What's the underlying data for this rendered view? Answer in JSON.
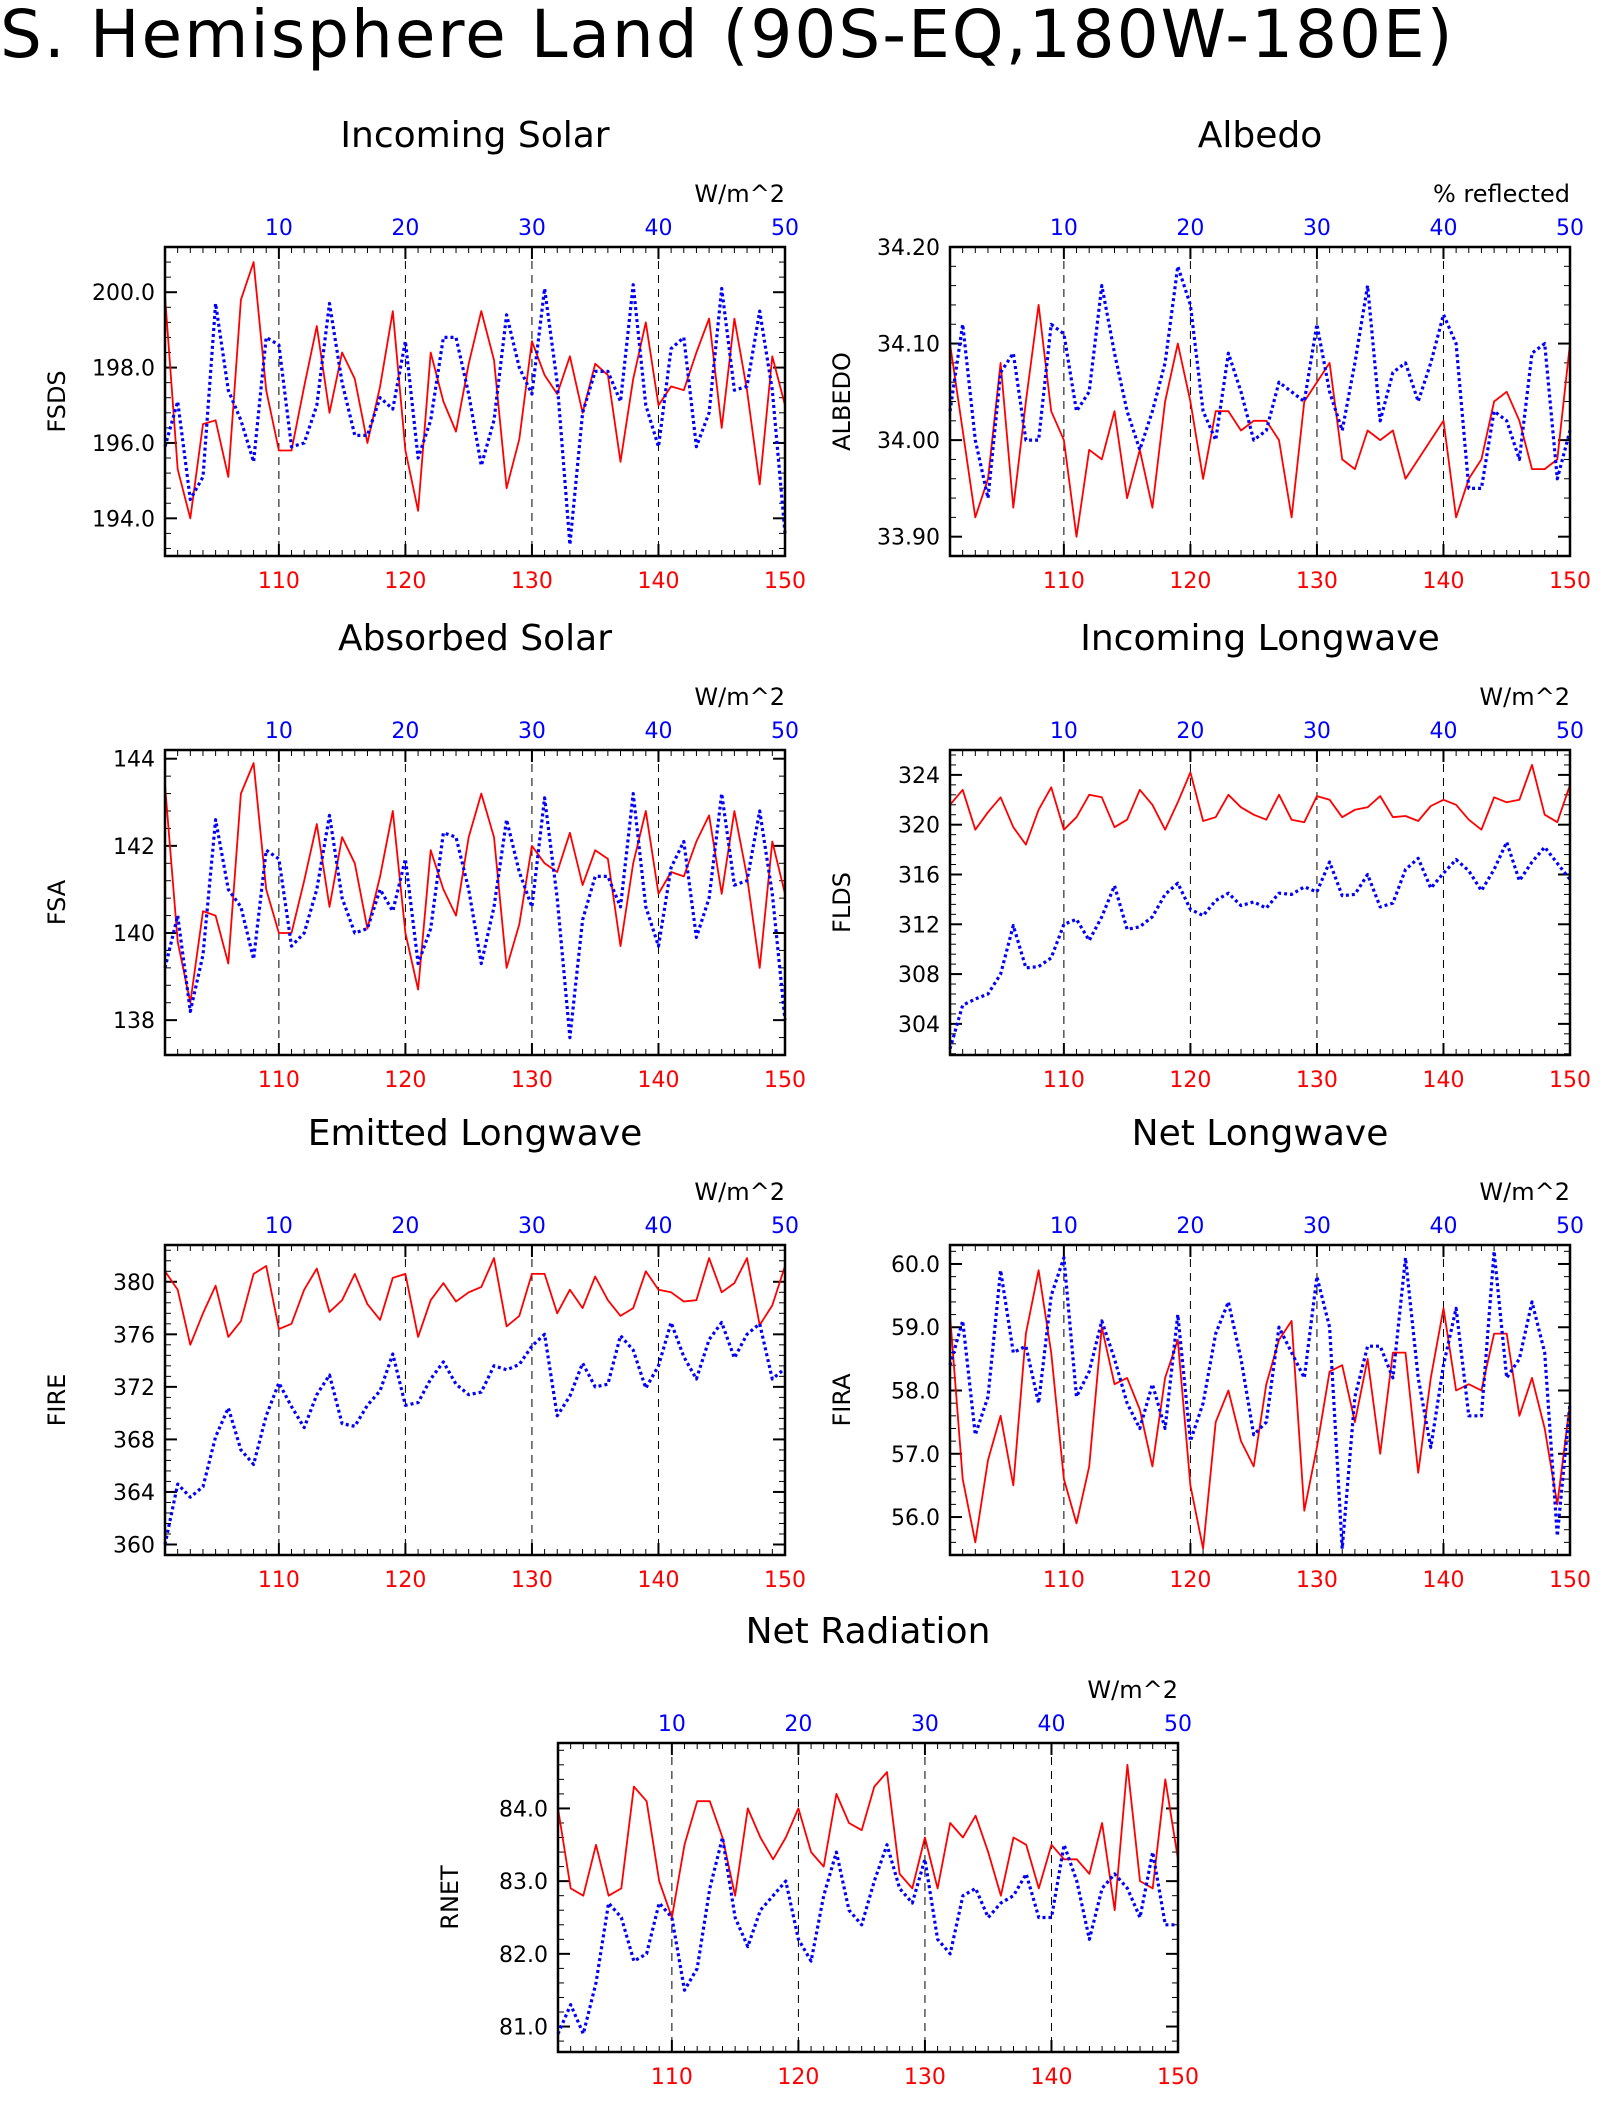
{
  "title": "S. Hemisphere Land (90S-EQ,180W-180E)",
  "colors": {
    "series_a": "#ff0000",
    "series_b": "#0000ff",
    "axes": "#000000",
    "grid": "#000000"
  },
  "chart_data": [
    {
      "id": "incoming-solar",
      "type": "line",
      "title": "Incoming Solar",
      "ylabel": "FSDS",
      "units": "W/m^2",
      "ylim": [
        193.0,
        201.2
      ],
      "yticks": [
        194.0,
        196.0,
        198.0,
        200.0
      ],
      "ytick_labels": [
        "194.0",
        "196.0",
        "198.0",
        "200.0"
      ],
      "xlim": [
        101,
        150
      ],
      "xticks_bottom": [
        "110",
        "120",
        "130",
        "140",
        "150"
      ],
      "xticks_top": [
        "10",
        "20",
        "30",
        "40",
        "50"
      ],
      "series": [
        {
          "values": [
            199.9,
            195.3,
            194.0,
            196.5,
            196.6,
            195.1,
            199.8,
            200.8,
            197.4,
            195.8,
            195.8,
            197.5,
            199.1,
            196.8,
            198.4,
            197.7,
            196.0,
            197.5,
            199.5,
            195.8,
            194.2,
            198.4,
            197.1,
            196.3,
            198.1,
            199.5,
            198.2,
            194.8,
            196.1,
            198.7,
            197.8,
            197.3,
            198.3,
            196.8,
            198.1,
            197.8,
            195.5,
            197.7,
            199.2,
            197.0,
            197.5,
            197.4,
            198.4,
            199.3,
            196.4,
            199.3,
            197.4,
            194.9,
            198.3,
            197.0
          ]
        },
        {
          "values": [
            195.9,
            197.1,
            194.5,
            195.1,
            199.7,
            197.4,
            196.6,
            195.5,
            198.8,
            198.6,
            195.9,
            196.0,
            197.0,
            199.7,
            197.6,
            196.2,
            196.2,
            197.2,
            196.9,
            198.7,
            195.6,
            196.6,
            198.8,
            198.8,
            197.3,
            195.4,
            196.6,
            199.4,
            198.0,
            197.3,
            200.1,
            197.6,
            193.3,
            196.8,
            197.9,
            197.9,
            197.1,
            200.2,
            197.0,
            195.9,
            198.5,
            198.8,
            195.9,
            196.8,
            200.1,
            197.4,
            197.5,
            199.5,
            197.4,
            193.6
          ]
        }
      ]
    },
    {
      "id": "albedo",
      "type": "line",
      "title": "Albedo",
      "ylabel": "ALBEDO",
      "units": "% reflected",
      "ylim": [
        33.88,
        34.2
      ],
      "yticks": [
        33.9,
        34.0,
        34.1,
        34.2
      ],
      "ytick_labels": [
        "33.90",
        "34.00",
        "34.10",
        "34.20"
      ],
      "xlim": [
        101,
        150
      ],
      "xticks_bottom": [
        "110",
        "120",
        "130",
        "140",
        "150"
      ],
      "xticks_top": [
        "10",
        "20",
        "30",
        "40",
        "50"
      ],
      "series": [
        {
          "values": [
            34.1,
            34.01,
            33.92,
            33.96,
            34.08,
            33.93,
            34.04,
            34.14,
            34.03,
            34.0,
            33.9,
            33.99,
            33.98,
            34.03,
            33.94,
            33.99,
            33.93,
            34.04,
            34.1,
            34.04,
            33.96,
            34.03,
            34.03,
            34.01,
            34.02,
            34.02,
            34.0,
            33.92,
            34.04,
            34.06,
            34.08,
            33.98,
            33.97,
            34.01,
            34.0,
            34.01,
            33.96,
            33.98,
            34.0,
            34.02,
            33.92,
            33.96,
            33.98,
            34.04,
            34.05,
            34.02,
            33.97,
            33.97,
            33.98,
            34.1
          ]
        },
        {
          "values": [
            34.03,
            34.12,
            34.0,
            33.94,
            34.07,
            34.09,
            34.0,
            34.0,
            34.12,
            34.11,
            34.03,
            34.05,
            34.16,
            34.09,
            34.03,
            33.99,
            34.03,
            34.08,
            34.18,
            34.14,
            34.03,
            34.0,
            34.09,
            34.05,
            34.0,
            34.01,
            34.06,
            34.05,
            34.04,
            34.12,
            34.05,
            34.01,
            34.08,
            34.16,
            34.02,
            34.07,
            34.08,
            34.04,
            34.08,
            34.13,
            34.1,
            33.95,
            33.95,
            34.03,
            34.02,
            33.98,
            34.09,
            34.1,
            33.96,
            34.01
          ]
        }
      ]
    },
    {
      "id": "absorbed-solar",
      "type": "line",
      "title": "Absorbed Solar",
      "ylabel": "FSA",
      "units": "W/m^2",
      "ylim": [
        137.2,
        144.2
      ],
      "yticks": [
        138,
        140,
        142,
        144
      ],
      "ytick_labels": [
        "138",
        "140",
        "142",
        "144"
      ],
      "xlim": [
        101,
        150
      ],
      "xticks_bottom": [
        "110",
        "120",
        "130",
        "140",
        "150"
      ],
      "xticks_top": [
        "10",
        "20",
        "30",
        "40",
        "50"
      ],
      "series": [
        {
          "values": [
            143.4,
            139.8,
            138.4,
            140.5,
            140.4,
            139.3,
            143.2,
            143.9,
            141.0,
            140.0,
            140.0,
            141.2,
            142.5,
            140.6,
            142.2,
            141.6,
            140.1,
            141.3,
            142.8,
            140.0,
            138.7,
            141.9,
            141.0,
            140.4,
            142.2,
            143.2,
            142.2,
            139.2,
            140.2,
            142.0,
            141.6,
            141.4,
            142.3,
            141.1,
            141.9,
            141.7,
            139.7,
            141.6,
            142.8,
            140.9,
            141.4,
            141.3,
            142.1,
            142.7,
            140.9,
            142.8,
            141.3,
            139.2,
            142.1,
            140.9
          ]
        },
        {
          "values": [
            139.2,
            140.4,
            138.2,
            139.5,
            142.6,
            141.0,
            140.6,
            139.4,
            141.9,
            141.7,
            139.7,
            140.0,
            141.0,
            142.7,
            140.8,
            140.0,
            140.1,
            141.0,
            140.5,
            141.7,
            139.3,
            140.1,
            142.3,
            142.2,
            141.0,
            139.3,
            140.6,
            142.6,
            141.4,
            140.6,
            143.1,
            140.8,
            137.6,
            140.3,
            141.3,
            141.3,
            140.6,
            143.2,
            140.6,
            139.7,
            141.5,
            142.1,
            139.9,
            140.8,
            143.2,
            141.1,
            141.2,
            142.8,
            140.9,
            138.0
          ]
        }
      ]
    },
    {
      "id": "incoming-longwave",
      "type": "line",
      "title": "Incoming Longwave",
      "ylabel": "FLDS",
      "units": "W/m^2",
      "ylim": [
        301.5,
        326
      ],
      "yticks": [
        304,
        308,
        312,
        316,
        320,
        324
      ],
      "ytick_labels": [
        "304",
        "308",
        "312",
        "316",
        "320",
        "324"
      ],
      "xlim": [
        101,
        150
      ],
      "xticks_bottom": [
        "110",
        "120",
        "130",
        "140",
        "150"
      ],
      "xticks_top": [
        "10",
        "20",
        "30",
        "40",
        "50"
      ],
      "series": [
        {
          "values": [
            321.6,
            322.8,
            319.6,
            321.0,
            322.2,
            319.8,
            318.4,
            321.2,
            323.0,
            319.6,
            320.6,
            322.4,
            322.2,
            319.8,
            320.4,
            322.8,
            321.6,
            319.6,
            321.8,
            324.2,
            320.3,
            320.6,
            322.4,
            321.4,
            320.8,
            320.4,
            322.4,
            320.4,
            320.2,
            322.3,
            322.0,
            320.6,
            321.2,
            321.4,
            322.3,
            320.6,
            320.7,
            320.3,
            321.5,
            322.0,
            321.6,
            320.4,
            319.6,
            322.2,
            321.8,
            322.0,
            324.8,
            320.8,
            320.2,
            323.2
          ]
        },
        {
          "values": [
            302.0,
            305.5,
            306.0,
            306.4,
            308.0,
            311.9,
            308.5,
            308.6,
            309.3,
            312.0,
            312.4,
            310.7,
            312.6,
            315.1,
            311.6,
            311.8,
            312.6,
            314.4,
            315.3,
            313.2,
            312.7,
            313.9,
            314.5,
            313.5,
            313.8,
            313.3,
            314.5,
            314.4,
            315.0,
            314.6,
            317.0,
            314.3,
            314.4,
            316.0,
            313.4,
            313.7,
            316.4,
            317.3,
            314.9,
            316.1,
            317.2,
            316.3,
            314.7,
            316.4,
            318.6,
            315.5,
            317.0,
            318.2,
            316.9,
            315.6
          ]
        }
      ]
    },
    {
      "id": "emitted-longwave",
      "type": "line",
      "title": "Emitted Longwave",
      "ylabel": "FIRE",
      "units": "W/m^2",
      "ylim": [
        359.2,
        382.8
      ],
      "yticks": [
        360,
        364,
        368,
        372,
        376,
        380
      ],
      "ytick_labels": [
        "360",
        "364",
        "368",
        "372",
        "376",
        "380"
      ],
      "xlim": [
        101,
        150
      ],
      "xticks_bottom": [
        "110",
        "120",
        "130",
        "140",
        "150"
      ],
      "xticks_top": [
        "10",
        "20",
        "30",
        "40",
        "50"
      ],
      "series": [
        {
          "values": [
            380.8,
            379.4,
            375.2,
            377.6,
            379.7,
            375.8,
            377.0,
            380.6,
            381.2,
            376.4,
            376.8,
            379.4,
            381.0,
            377.7,
            378.6,
            380.6,
            378.3,
            377.1,
            380.3,
            380.6,
            375.8,
            378.6,
            379.9,
            378.5,
            379.2,
            379.6,
            381.8,
            376.6,
            377.4,
            380.6,
            380.6,
            377.6,
            379.4,
            378.0,
            380.4,
            378.6,
            377.4,
            378.0,
            380.8,
            379.4,
            379.2,
            378.5,
            378.6,
            381.8,
            379.2,
            379.9,
            381.8,
            376.7,
            378.2,
            381.2
          ]
        },
        {
          "values": [
            360.0,
            364.6,
            363.6,
            364.4,
            368.2,
            370.4,
            367.2,
            366.1,
            369.8,
            372.3,
            370.5,
            368.9,
            371.4,
            372.9,
            369.2,
            369.0,
            370.6,
            371.7,
            374.5,
            370.6,
            370.8,
            372.6,
            373.9,
            372.2,
            371.4,
            371.6,
            373.6,
            373.3,
            373.7,
            375.1,
            376.0,
            369.8,
            371.3,
            373.8,
            372.0,
            372.2,
            375.9,
            374.8,
            371.9,
            373.6,
            376.9,
            374.3,
            372.6,
            375.6,
            376.9,
            374.2,
            376.0,
            376.8,
            372.6,
            373.4
          ]
        }
      ]
    },
    {
      "id": "net-longwave",
      "type": "line",
      "title": "Net Longwave",
      "ylabel": "FIRA",
      "units": "W/m^2",
      "ylim": [
        55.4,
        60.3
      ],
      "yticks": [
        56.0,
        57.0,
        58.0,
        59.0,
        60.0
      ],
      "ytick_labels": [
        "56.0",
        "57.0",
        "58.0",
        "59.0",
        "60.0"
      ],
      "xlim": [
        101,
        150
      ],
      "xticks_bottom": [
        "110",
        "120",
        "130",
        "140",
        "150"
      ],
      "xticks_top": [
        "10",
        "20",
        "30",
        "40",
        "50"
      ],
      "series": [
        {
          "values": [
            59.2,
            56.6,
            55.6,
            56.9,
            57.6,
            56.5,
            58.9,
            59.9,
            58.6,
            56.6,
            55.9,
            56.8,
            59.0,
            58.1,
            58.2,
            57.7,
            56.8,
            58.2,
            58.8,
            56.5,
            55.5,
            57.5,
            58.0,
            57.2,
            56.8,
            58.1,
            58.8,
            59.1,
            56.1,
            57.1,
            58.3,
            58.4,
            57.5,
            58.5,
            57.0,
            58.6,
            58.6,
            56.7,
            58.2,
            59.3,
            58.0,
            58.1,
            58.0,
            58.9,
            58.9,
            57.6,
            58.2,
            57.4,
            56.2,
            57.8
          ]
        },
        {
          "values": [
            58.4,
            59.1,
            57.3,
            57.9,
            59.9,
            58.6,
            58.7,
            57.8,
            59.5,
            60.1,
            57.9,
            58.3,
            59.1,
            58.5,
            57.8,
            57.4,
            58.1,
            57.4,
            59.2,
            57.2,
            57.8,
            58.9,
            59.4,
            58.5,
            57.3,
            57.5,
            59.0,
            58.6,
            58.2,
            59.8,
            59.0,
            55.5,
            57.9,
            58.7,
            58.7,
            58.2,
            60.1,
            58.2,
            57.1,
            58.4,
            59.3,
            57.6,
            57.6,
            60.2,
            58.2,
            58.5,
            59.4,
            58.6,
            55.7,
            57.8
          ]
        }
      ]
    },
    {
      "id": "net-radiation",
      "type": "line",
      "title": "Net Radiation",
      "ylabel": "RNET",
      "units": "W/m^2",
      "ylim": [
        80.65,
        84.9
      ],
      "yticks": [
        81.0,
        82.0,
        83.0,
        84.0
      ],
      "ytick_labels": [
        "81.0",
        "82.0",
        "83.0",
        "84.0"
      ],
      "xlim": [
        101,
        150
      ],
      "xticks_bottom": [
        "110",
        "120",
        "130",
        "140",
        "150"
      ],
      "xticks_top": [
        "10",
        "20",
        "30",
        "40",
        "50"
      ],
      "series": [
        {
          "values": [
            84.0,
            82.9,
            82.8,
            83.5,
            82.8,
            82.9,
            84.3,
            84.1,
            83.0,
            82.5,
            83.5,
            84.1,
            84.1,
            83.6,
            82.8,
            84.0,
            83.6,
            83.3,
            83.6,
            84.0,
            83.4,
            83.2,
            84.2,
            83.8,
            83.7,
            84.3,
            84.5,
            83.1,
            82.9,
            83.6,
            82.9,
            83.8,
            83.6,
            83.9,
            83.4,
            82.8,
            83.6,
            83.5,
            82.9,
            83.5,
            83.3,
            83.3,
            83.1,
            83.8,
            82.6,
            84.6,
            83.0,
            82.9,
            84.4,
            83.3
          ]
        },
        {
          "values": [
            80.9,
            81.3,
            80.9,
            81.6,
            82.7,
            82.5,
            81.9,
            82.0,
            82.7,
            82.5,
            81.5,
            81.8,
            82.9,
            83.6,
            82.5,
            82.1,
            82.6,
            82.8,
            83.0,
            82.2,
            81.9,
            82.8,
            83.4,
            82.6,
            82.4,
            83.0,
            83.5,
            82.9,
            82.7,
            83.3,
            82.2,
            82.0,
            82.8,
            82.9,
            82.5,
            82.7,
            82.8,
            83.1,
            82.5,
            82.5,
            83.5,
            83.0,
            82.2,
            82.9,
            83.1,
            82.9,
            82.5,
            83.4,
            82.4,
            82.4
          ]
        }
      ]
    }
  ]
}
